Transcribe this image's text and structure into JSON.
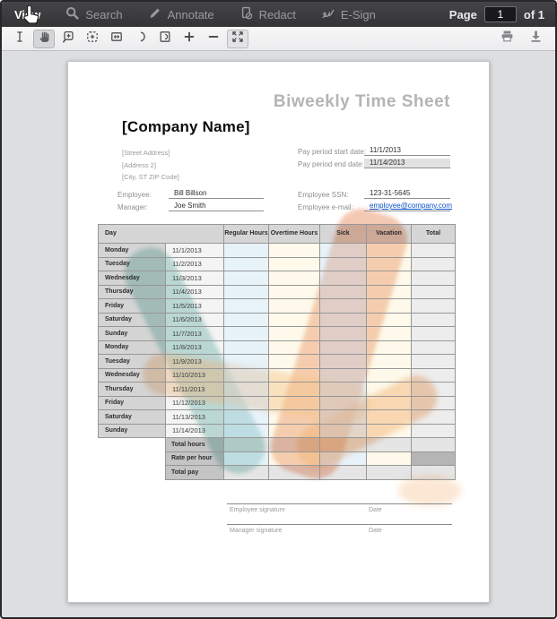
{
  "toolbar": {
    "tabs": [
      {
        "label": "View",
        "active": true
      },
      {
        "label": "Search",
        "active": false
      },
      {
        "label": "Annotate",
        "active": false
      },
      {
        "label": "Redact",
        "active": false
      },
      {
        "label": "E-Sign",
        "active": false
      }
    ],
    "page_label": "Page",
    "page_value": "1",
    "page_of": "of 1"
  },
  "icons": [
    "mouse-cursor",
    "search-icon",
    "annotate-pencil-icon",
    "redact-icon",
    "esign-icon",
    "text-select-icon",
    "pan-hand-icon",
    "zoom-tool-icon",
    "marquee-zoom-icon",
    "fit-width-icon",
    "rotate-icon",
    "rotate-page-icon",
    "zoom-in-icon",
    "zoom-out-icon",
    "fullscreen-icon",
    "print-icon",
    "download-icon"
  ],
  "document": {
    "title": "Biweekly Time Sheet",
    "company": "[Company Name]",
    "address": [
      "[Street Address]",
      "[Address 2]",
      "[City, ST  ZIP Code]"
    ],
    "fields": {
      "pay_start_label": "Pay period start date:",
      "pay_start_value": "11/1/2013",
      "pay_end_label": "Pay period end date:",
      "pay_end_value": "11/14/2013",
      "employee_label": "Employee:",
      "employee_value": "Bill Billson",
      "manager_label": "Manager:",
      "manager_value": "Joe Smith",
      "ssn_label": "Employee SSN:",
      "ssn_value": "123-31-5645",
      "email_label": "Employee e-mail:",
      "email_value": "employee@company.com"
    },
    "table": {
      "headers": [
        "Day",
        "Regular Hours",
        "Overtime Hours",
        "Sick",
        "Vacation",
        "Total"
      ],
      "rows": [
        {
          "day": "Monday",
          "date": "11/1/2013"
        },
        {
          "day": "Tuesday",
          "date": "11/2/2013"
        },
        {
          "day": "Wednesday",
          "date": "11/3/2013"
        },
        {
          "day": "Thursday",
          "date": "11/4/2013"
        },
        {
          "day": "Friday",
          "date": "11/5/2013"
        },
        {
          "day": "Saturday",
          "date": "11/6/2013"
        },
        {
          "day": "Sunday",
          "date": "11/7/2013"
        },
        {
          "day": "Monday",
          "date": "11/8/2013"
        },
        {
          "day": "Tuesday",
          "date": "11/9/2013"
        },
        {
          "day": "Wednesday",
          "date": "11/10/2013"
        },
        {
          "day": "Thursday",
          "date": "11/11/2013"
        },
        {
          "day": "Friday",
          "date": "11/12/2013"
        },
        {
          "day": "Saturday",
          "date": "11/13/2013"
        },
        {
          "day": "Sunday",
          "date": "11/14/2013"
        }
      ],
      "totals": [
        "Total hours",
        "Rate per hour",
        "Total pay"
      ]
    },
    "signatures": [
      {
        "name_label": "Employee signature",
        "date_label": "Date"
      },
      {
        "name_label": "Manager signature",
        "date_label": "Date"
      }
    ]
  },
  "colors": {
    "accent_orange": "#ea8f64",
    "accent_teal": "#72bab0",
    "link_blue": "#0b52c8"
  }
}
